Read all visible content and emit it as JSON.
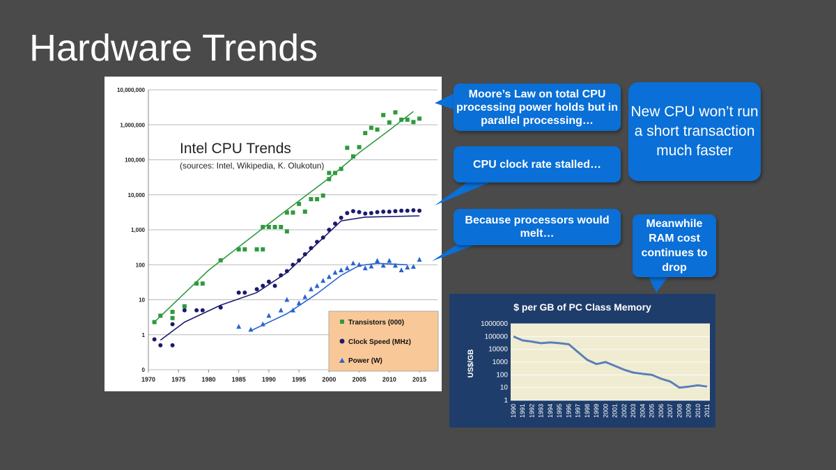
{
  "slide": {
    "title": "Hardware Trends"
  },
  "callouts": {
    "moore": "Moore’s Law on total CPU processing power holds but in parallel processing…",
    "clock": "CPU clock rate stalled…",
    "melt": "Because processors would melt…",
    "cpu_faster": "New CPU won’t run a short transaction much faster",
    "ram": "Meanwhile RAM cost continues to drop"
  },
  "colors": {
    "background": "#4a4a4a",
    "callout": "#0a6fd6",
    "transistors": "#2e9a3e",
    "clock": "#1a1a6e",
    "power": "#2a63d0",
    "legend_bg": "#f8c898",
    "mem_panel": "#1f3d6b",
    "mem_plot": "#f0ecd2",
    "mem_line": "#5a7fb8"
  },
  "chart_data": [
    {
      "type": "scatter",
      "title": "Intel CPU Trends",
      "subtitle": "(sources: Intel, Wikipedia, K. Olukotun)",
      "y_scale": "log",
      "xlim": [
        1970,
        2018
      ],
      "ylim": [
        0,
        10000000
      ],
      "x_ticks": [
        "1970",
        "1975",
        "1980",
        "1985",
        "1990",
        "1995",
        "2000",
        "2005",
        "2010",
        "2015"
      ],
      "y_ticks": [
        "0",
        "1",
        "10",
        "100",
        "1,000",
        "10,000",
        "100,000",
        "1,000,000",
        "10,000,000"
      ],
      "legend_position": "bottom-right",
      "grid": true,
      "series": [
        {
          "name": "Transistors (000)",
          "marker": "square",
          "points": [
            [
              1971,
              2.3
            ],
            [
              1972,
              3.5
            ],
            [
              1974,
              4.5
            ],
            [
              1974,
              3
            ],
            [
              1976,
              6.5
            ],
            [
              1978,
              29
            ],
            [
              1979,
              29
            ],
            [
              1982,
              134
            ],
            [
              1985,
              275
            ],
            [
              1986,
              275
            ],
            [
              1988,
              275
            ],
            [
              1989,
              1200
            ],
            [
              1989,
              275
            ],
            [
              1990,
              1200
            ],
            [
              1991,
              1200
            ],
            [
              1992,
              1200
            ],
            [
              1993,
              3100
            ],
            [
              1993,
              900
            ],
            [
              1994,
              3100
            ],
            [
              1995,
              5500
            ],
            [
              1996,
              3300
            ],
            [
              1997,
              7500
            ],
            [
              1998,
              7500
            ],
            [
              1999,
              9500
            ],
            [
              2000,
              42000
            ],
            [
              2000,
              28000
            ],
            [
              2001,
              42000
            ],
            [
              2002,
              55000
            ],
            [
              2003,
              220000
            ],
            [
              2004,
              125000
            ],
            [
              2005,
              230000
            ],
            [
              2006,
              580000
            ],
            [
              2007,
              820000
            ],
            [
              2008,
              730000
            ],
            [
              2009,
              1900000
            ],
            [
              2010,
              1170000
            ],
            [
              2011,
              2270000
            ],
            [
              2012,
              1400000
            ],
            [
              2013,
              1400000
            ],
            [
              2014,
              1200000
            ],
            [
              2015,
              1500000
            ]
          ]
        },
        {
          "name": "Clock Speed (MHz)",
          "marker": "circle",
          "points": [
            [
              1971,
              0.74
            ],
            [
              1972,
              0.5
            ],
            [
              1974,
              2
            ],
            [
              1974,
              0.5
            ],
            [
              1976,
              5
            ],
            [
              1978,
              5
            ],
            [
              1979,
              5
            ],
            [
              1982,
              6
            ],
            [
              1985,
              16
            ],
            [
              1986,
              16
            ],
            [
              1988,
              20
            ],
            [
              1989,
              25
            ],
            [
              1990,
              33
            ],
            [
              1991,
              25
            ],
            [
              1992,
              50
            ],
            [
              1993,
              66
            ],
            [
              1994,
              100
            ],
            [
              1995,
              133
            ],
            [
              1996,
              200
            ],
            [
              1997,
              300
            ],
            [
              1998,
              450
            ],
            [
              1999,
              600
            ],
            [
              2000,
              1000
            ],
            [
              2001,
              1500
            ],
            [
              2002,
              2200
            ],
            [
              2003,
              3000
            ],
            [
              2004,
              3400
            ],
            [
              2005,
              3200
            ],
            [
              2006,
              2900
            ],
            [
              2007,
              3000
            ],
            [
              2008,
              3200
            ],
            [
              2009,
              3300
            ],
            [
              2010,
              3300
            ],
            [
              2011,
              3400
            ],
            [
              2012,
              3500
            ],
            [
              2013,
              3500
            ],
            [
              2014,
              3600
            ],
            [
              2015,
              3500
            ]
          ]
        },
        {
          "name": "Power (W)",
          "marker": "triangle",
          "points": [
            [
              1985,
              1.7
            ],
            [
              1987,
              1.4
            ],
            [
              1989,
              2
            ],
            [
              1990,
              3.5
            ],
            [
              1992,
              5
            ],
            [
              1993,
              10
            ],
            [
              1994,
              5
            ],
            [
              1995,
              8
            ],
            [
              1996,
              12
            ],
            [
              1997,
              20
            ],
            [
              1998,
              25
            ],
            [
              1999,
              35
            ],
            [
              2000,
              45
            ],
            [
              2001,
              60
            ],
            [
              2002,
              70
            ],
            [
              2003,
              80
            ],
            [
              2004,
              110
            ],
            [
              2005,
              100
            ],
            [
              2006,
              80
            ],
            [
              2007,
              90
            ],
            [
              2008,
              130
            ],
            [
              2009,
              95
            ],
            [
              2010,
              130
            ],
            [
              2011,
              95
            ],
            [
              2012,
              70
            ],
            [
              2013,
              84
            ],
            [
              2014,
              88
            ],
            [
              2015,
              140
            ]
          ]
        }
      ]
    },
    {
      "type": "line",
      "title": "$ per GB of PC Class Memory",
      "ylabel": "US$/GB",
      "y_scale": "log",
      "ylim": [
        1,
        1000000
      ],
      "y_ticks": [
        "1000000",
        "100000",
        "10000",
        "1000",
        "100",
        "10",
        "1"
      ],
      "x_ticks": [
        "1990",
        "1991",
        "1992",
        "1993",
        "1994",
        "1995",
        "1996",
        "1997",
        "1998",
        "1999",
        "2000",
        "2001",
        "2002",
        "2003",
        "2004",
        "2005",
        "2006",
        "2007",
        "2008",
        "2009",
        "2010",
        "2011"
      ],
      "x": [
        1990,
        1991,
        1992,
        1993,
        1994,
        1995,
        1996,
        1997,
        1998,
        1999,
        2000,
        2001,
        2002,
        2003,
        2004,
        2005,
        2006,
        2007,
        2008,
        2009,
        2010,
        2011
      ],
      "values": [
        100000,
        50000,
        40000,
        30000,
        35000,
        30000,
        25000,
        6000,
        1500,
        700,
        1000,
        500,
        250,
        150,
        120,
        100,
        50,
        30,
        10,
        12,
        15,
        12
      ]
    }
  ]
}
